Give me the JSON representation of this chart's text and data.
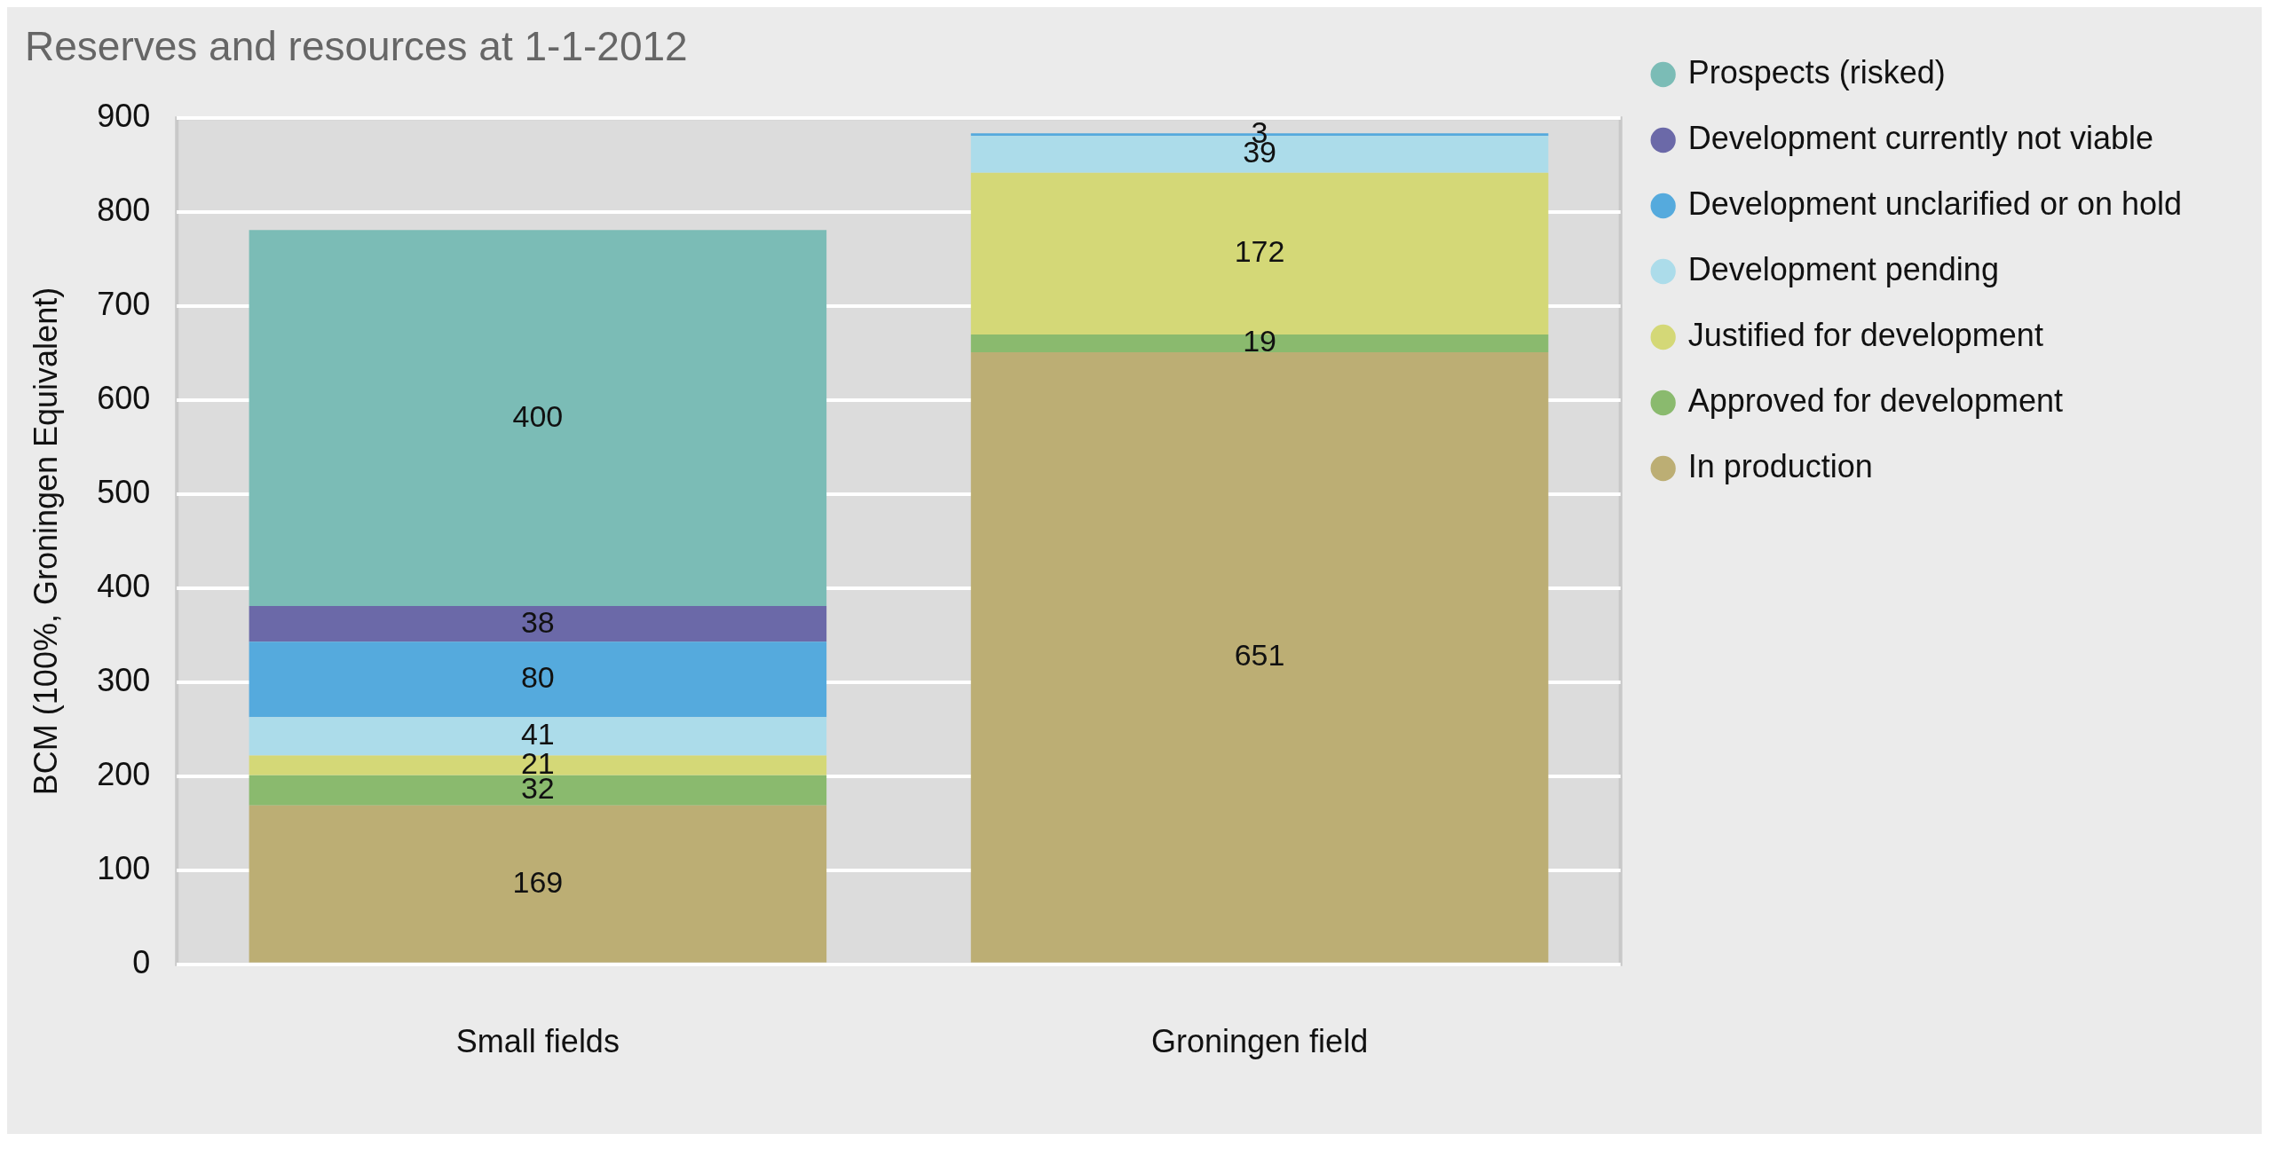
{
  "chart_data": {
    "type": "bar",
    "title": "Reserves and resources at 1-1-2012",
    "ylabel": "BCM (100%, Groningen Equivalent)",
    "categories": [
      "Small fields",
      "Groningen field"
    ],
    "stacked": true,
    "data_labels": true,
    "grid": "y",
    "legend": "right",
    "ylim": [
      0,
      900
    ],
    "yticks": [
      0,
      100,
      200,
      300,
      400,
      500,
      600,
      700,
      800,
      900
    ],
    "series": [
      {
        "name": "In production",
        "color": "#bcae74",
        "values": [
          169,
          651
        ]
      },
      {
        "name": "Approved for development",
        "color": "#8aba6e",
        "values": [
          32,
          19
        ]
      },
      {
        "name": "Justified for development",
        "color": "#d4d877",
        "values": [
          21,
          172
        ]
      },
      {
        "name": "Development pending",
        "color": "#acdcea",
        "values": [
          41,
          39
        ]
      },
      {
        "name": "Development unclarified or on hold",
        "color": "#55aadd",
        "values": [
          80,
          3
        ]
      },
      {
        "name": "Development currently not viable",
        "color": "#6b69a8",
        "values": [
          38,
          null
        ]
      },
      {
        "name": "Prospects (risked)",
        "color": "#7bbcb6",
        "values": [
          400,
          null
        ]
      }
    ]
  }
}
